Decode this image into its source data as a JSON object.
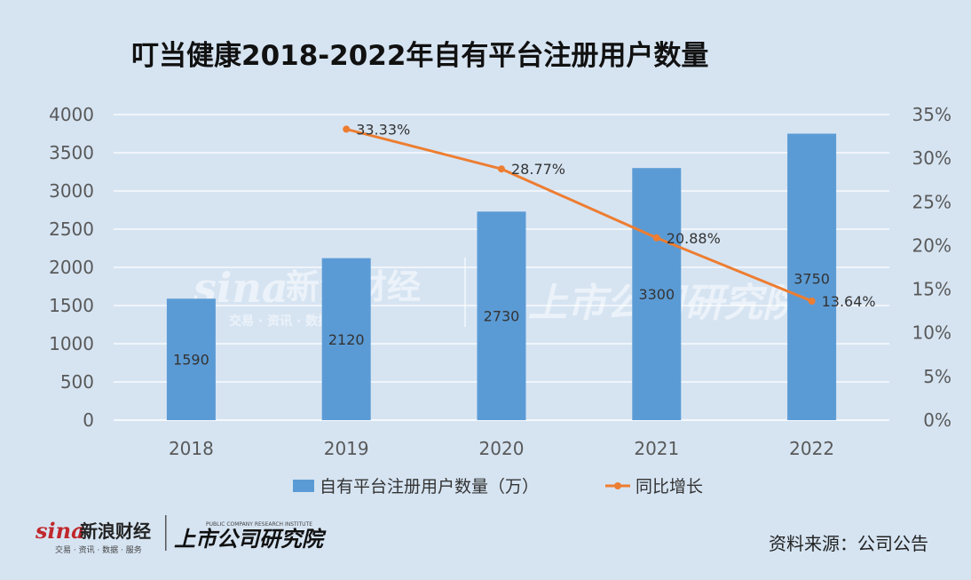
{
  "title": "叮当健康2018-2022年自有平台注册用户数量",
  "source": "资料来源：公司公告",
  "watermark": {
    "sina": "sina",
    "sina_cn": "新浪财经",
    "sina_sub": "交易 · 资讯 · 数据 · 服务",
    "institute": "上市公司研究院",
    "institute_en": "PUBLIC COMPANY RESEARCH INSTITUTE"
  },
  "colors": {
    "background": "#d6e4f2",
    "bar": "#5b9bd5",
    "line": "#ed7d31",
    "gridline": "#ffffff"
  },
  "chart_data": {
    "type": "bar+line",
    "categories": [
      "2018",
      "2019",
      "2020",
      "2021",
      "2022"
    ],
    "series": [
      {
        "name": "自有平台注册用户数量（万）",
        "type": "bar",
        "axis": "left",
        "values": [
          1590,
          2120,
          2730,
          3300,
          3750
        ],
        "labels": [
          "1590",
          "2120",
          "2730",
          "3300",
          "3750"
        ]
      },
      {
        "name": "同比增长",
        "type": "line",
        "axis": "right",
        "values": [
          null,
          33.33,
          28.77,
          20.88,
          13.64
        ],
        "labels": [
          "",
          "33.33%",
          "28.77%",
          "20.88%",
          "13.64%"
        ]
      }
    ],
    "y_left": {
      "min": 0,
      "max": 4000,
      "step": 500,
      "ticks": [
        "0",
        "500",
        "1000",
        "1500",
        "2000",
        "2500",
        "3000",
        "3500",
        "4000"
      ]
    },
    "y_right": {
      "min": 0,
      "max": 35,
      "step": 5,
      "ticks": [
        "0%",
        "5%",
        "10%",
        "15%",
        "20%",
        "25%",
        "30%",
        "35%"
      ]
    },
    "grid": true,
    "legend_position": "bottom"
  }
}
